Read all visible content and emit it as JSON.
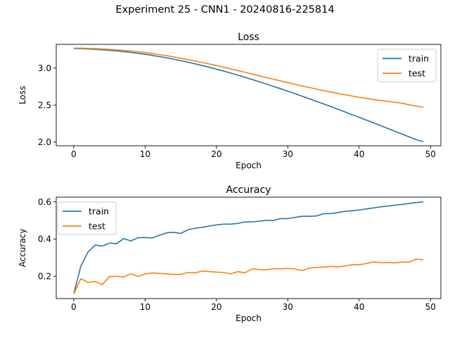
{
  "figure": {
    "suptitle": "Experiment 25 - CNN1 - 20240816-225814"
  },
  "chart_data": [
    {
      "type": "line",
      "title": "Loss",
      "xlabel": "Epoch",
      "ylabel": "Loss",
      "xlim": [
        -2.45,
        51.45
      ],
      "ylim": [
        1.95,
        3.32
      ],
      "xticks": [
        0,
        10,
        20,
        30,
        40,
        50
      ],
      "yticks": [
        2.0,
        2.5,
        3.0
      ],
      "ytick_labels": [
        "2.0",
        "2.5",
        "3.0"
      ],
      "legend_position": "top-right",
      "grid": false,
      "x": [
        0,
        1,
        2,
        3,
        4,
        5,
        6,
        7,
        8,
        9,
        10,
        11,
        12,
        13,
        14,
        15,
        16,
        17,
        18,
        19,
        20,
        21,
        22,
        23,
        24,
        25,
        26,
        27,
        28,
        29,
        30,
        31,
        32,
        33,
        34,
        35,
        36,
        37,
        38,
        39,
        40,
        41,
        42,
        43,
        44,
        45,
        46,
        47,
        48,
        49
      ],
      "series": [
        {
          "name": "train",
          "color": "#1f77b4",
          "values": [
            3.265,
            3.262,
            3.258,
            3.253,
            3.247,
            3.24,
            3.232,
            3.222,
            3.211,
            3.199,
            3.186,
            3.171,
            3.155,
            3.138,
            3.12,
            3.1,
            3.079,
            3.057,
            3.034,
            3.01,
            2.985,
            2.959,
            2.932,
            2.904,
            2.875,
            2.845,
            2.815,
            2.784,
            2.752,
            2.72,
            2.687,
            2.654,
            2.62,
            2.586,
            2.551,
            2.516,
            2.48,
            2.444,
            2.408,
            2.371,
            2.334,
            2.297,
            2.26,
            2.222,
            2.184,
            2.146,
            2.108,
            2.07,
            2.032,
            2.005
          ]
        },
        {
          "name": "test",
          "color": "#ff7f0e",
          "values": [
            3.27,
            3.268,
            3.265,
            3.262,
            3.258,
            3.253,
            3.246,
            3.239,
            3.23,
            3.22,
            3.209,
            3.196,
            3.182,
            3.167,
            3.151,
            3.133,
            3.115,
            3.096,
            3.076,
            3.055,
            3.034,
            3.012,
            2.989,
            2.966,
            2.943,
            2.919,
            2.896,
            2.872,
            2.849,
            2.826,
            2.803,
            2.78,
            2.758,
            2.737,
            2.716,
            2.695,
            2.676,
            2.657,
            2.639,
            2.622,
            2.605,
            2.59,
            2.575,
            2.562,
            2.549,
            2.537,
            2.525,
            2.505,
            2.485,
            2.47
          ]
        }
      ]
    },
    {
      "type": "line",
      "title": "Accuracy",
      "xlabel": "Epoch",
      "ylabel": "Accuracy",
      "xlim": [
        -2.45,
        51.45
      ],
      "ylim": [
        0.08,
        0.625
      ],
      "xticks": [
        0,
        10,
        20,
        30,
        40,
        50
      ],
      "yticks": [
        0.2,
        0.4,
        0.6
      ],
      "ytick_labels": [
        "0.2",
        "0.4",
        "0.6"
      ],
      "legend_position": "top-left",
      "grid": false,
      "x": [
        0,
        1,
        2,
        3,
        4,
        5,
        6,
        7,
        8,
        9,
        10,
        11,
        12,
        13,
        14,
        15,
        16,
        17,
        18,
        19,
        20,
        21,
        22,
        23,
        24,
        25,
        26,
        27,
        28,
        29,
        30,
        31,
        32,
        33,
        34,
        35,
        36,
        37,
        38,
        39,
        40,
        41,
        42,
        43,
        44,
        45,
        46,
        47,
        48,
        49
      ],
      "series": [
        {
          "name": "train",
          "color": "#1f77b4",
          "values": [
            0.105,
            0.255,
            0.33,
            0.368,
            0.362,
            0.378,
            0.375,
            0.402,
            0.39,
            0.407,
            0.408,
            0.406,
            0.42,
            0.433,
            0.436,
            0.43,
            0.45,
            0.458,
            0.463,
            0.47,
            0.476,
            0.48,
            0.48,
            0.484,
            0.492,
            0.492,
            0.496,
            0.5,
            0.5,
            0.51,
            0.51,
            0.516,
            0.522,
            0.522,
            0.524,
            0.536,
            0.537,
            0.542,
            0.549,
            0.552,
            0.556,
            0.562,
            0.567,
            0.573,
            0.577,
            0.582,
            0.586,
            0.591,
            0.596,
            0.6
          ]
        },
        {
          "name": "test",
          "color": "#ff7f0e",
          "values": [
            0.105,
            0.187,
            0.167,
            0.172,
            0.155,
            0.198,
            0.2,
            0.196,
            0.213,
            0.199,
            0.212,
            0.218,
            0.215,
            0.213,
            0.21,
            0.21,
            0.22,
            0.218,
            0.228,
            0.225,
            0.222,
            0.22,
            0.213,
            0.225,
            0.218,
            0.24,
            0.236,
            0.235,
            0.24,
            0.24,
            0.242,
            0.239,
            0.231,
            0.244,
            0.247,
            0.249,
            0.253,
            0.25,
            0.255,
            0.262,
            0.262,
            0.268,
            0.277,
            0.273,
            0.274,
            0.272,
            0.276,
            0.276,
            0.292,
            0.288
          ]
        }
      ]
    }
  ]
}
